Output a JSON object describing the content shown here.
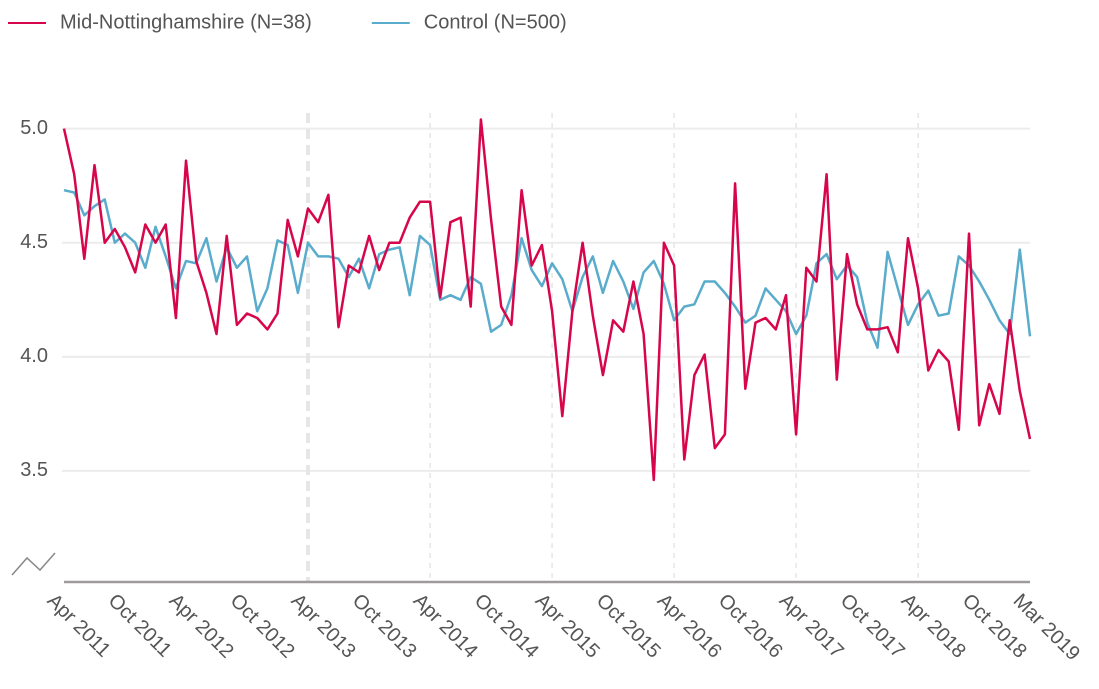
{
  "chart_data": {
    "type": "line",
    "categories": [
      "Apr 2011",
      null,
      null,
      null,
      null,
      null,
      "Oct 2011",
      null,
      null,
      null,
      null,
      null,
      "Apr 2012",
      null,
      null,
      null,
      null,
      null,
      "Oct 2012",
      null,
      null,
      null,
      null,
      null,
      "Apr 2013",
      null,
      null,
      null,
      null,
      null,
      "Oct 2013",
      null,
      null,
      null,
      null,
      null,
      "Apr 2014",
      null,
      null,
      null,
      null,
      null,
      "Oct 2014",
      null,
      null,
      null,
      null,
      null,
      "Apr 2015",
      null,
      null,
      null,
      null,
      null,
      "Oct 2015",
      null,
      null,
      null,
      null,
      null,
      "Apr 2016",
      null,
      null,
      null,
      null,
      null,
      "Oct 2016",
      null,
      null,
      null,
      null,
      null,
      "Apr 2017",
      null,
      null,
      null,
      null,
      null,
      "Oct 2017",
      null,
      null,
      null,
      null,
      null,
      "Apr 2018",
      null,
      null,
      null,
      null,
      null,
      "Oct 2018",
      null,
      null,
      null,
      null,
      "Mar 2019"
    ],
    "series": [
      {
        "name": "Mid-Nottinghamshire (N=38)",
        "color": "#d7064a",
        "values": [
          5.0,
          4.8,
          4.43,
          4.84,
          4.5,
          4.56,
          4.48,
          4.37,
          4.58,
          4.5,
          4.58,
          4.17,
          4.86,
          4.42,
          4.28,
          4.1,
          4.53,
          4.14,
          4.19,
          4.17,
          4.12,
          4.19,
          4.6,
          4.44,
          4.65,
          4.59,
          4.71,
          4.13,
          4.4,
          4.37,
          4.53,
          4.38,
          4.5,
          4.5,
          4.61,
          4.68,
          4.68,
          4.26,
          4.59,
          4.61,
          4.22,
          5.04,
          4.6,
          4.22,
          4.14,
          4.73,
          4.4,
          4.49,
          4.2,
          3.74,
          4.2,
          4.5,
          4.18,
          3.92,
          4.16,
          4.11,
          4.33,
          4.1,
          3.46,
          4.5,
          4.4,
          3.55,
          3.92,
          4.01,
          3.6,
          3.66,
          4.76,
          3.86,
          4.15,
          4.17,
          4.12,
          4.27,
          3.66,
          4.39,
          4.33,
          4.8,
          3.9,
          4.45,
          4.23,
          4.12,
          4.12,
          4.13,
          4.02,
          4.52,
          4.3,
          3.94,
          4.03,
          3.98,
          3.68,
          4.54,
          3.7,
          3.88,
          3.75,
          4.16,
          3.85,
          3.64
        ]
      },
      {
        "name": "Control (N=500)",
        "color": "#5aaccc",
        "values": [
          4.73,
          4.72,
          4.62,
          4.66,
          4.69,
          4.5,
          4.54,
          4.5,
          4.39,
          4.57,
          4.44,
          4.3,
          4.42,
          4.41,
          4.52,
          4.33,
          4.48,
          4.39,
          4.44,
          4.2,
          4.3,
          4.51,
          4.49,
          4.28,
          4.5,
          4.44,
          4.44,
          4.43,
          4.35,
          4.43,
          4.3,
          4.45,
          4.47,
          4.48,
          4.27,
          4.53,
          4.49,
          4.25,
          4.27,
          4.25,
          4.35,
          4.32,
          4.11,
          4.14,
          4.27,
          4.52,
          4.38,
          4.31,
          4.41,
          4.34,
          4.2,
          4.35,
          4.44,
          4.28,
          4.42,
          4.33,
          4.21,
          4.37,
          4.42,
          4.32,
          4.16,
          4.22,
          4.23,
          4.33,
          4.33,
          4.28,
          4.22,
          4.15,
          4.18,
          4.3,
          4.25,
          4.2,
          4.1,
          4.18,
          4.41,
          4.45,
          4.34,
          4.4,
          4.35,
          4.15,
          4.04,
          4.46,
          4.3,
          4.14,
          4.23,
          4.29,
          4.18,
          4.19,
          4.44,
          4.4,
          4.33,
          4.25,
          4.16,
          4.1,
          4.47,
          4.09
        ]
      }
    ],
    "ylim": [
      3.0,
      5.2
    ],
    "yticks": [
      3.5,
      {
        "value": 4,
        "label": "4.0"
      },
      4.5,
      {
        "value": 5,
        "label": "5.0"
      }
    ],
    "grid": true
  }
}
